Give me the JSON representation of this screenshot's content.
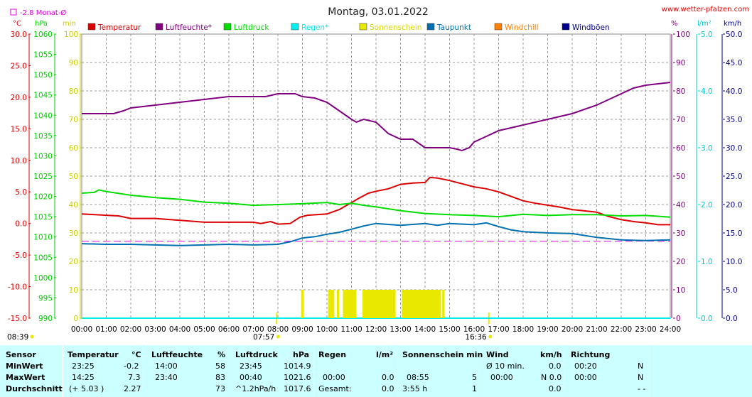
{
  "header": {
    "title": "Montag, 03.01.2022",
    "site": "www.wetter-pfalzen.com",
    "monat_label": "-2.8 Monat-Ø"
  },
  "units": {
    "temp": "°C",
    "press": "hPa",
    "sun": "min",
    "hum": "%",
    "rain": "l/m²",
    "wind": "km/h"
  },
  "legend": [
    {
      "label": "Temperatur",
      "color": "#dd0000"
    },
    {
      "label": "Luftfeuchte*",
      "color": "#800080"
    },
    {
      "label": "Luftdruck",
      "color": "#00dd00"
    },
    {
      "label": "Regen*",
      "color": "#00eeee"
    },
    {
      "label": "Sonnenschein",
      "color": "#e8e800"
    },
    {
      "label": "Taupunkt",
      "color": "#0070b0"
    },
    {
      "label": "Windchill",
      "color": "#ff8000"
    },
    {
      "label": "Windböen",
      "color": "#000090"
    }
  ],
  "axes": {
    "temp_ticks": [
      "30.0",
      "25.0",
      "20.0",
      "15.0",
      "10.0",
      "5.0",
      "0.0",
      "-5.0",
      "-10.0",
      "-15.0"
    ],
    "press_ticks": [
      "1060",
      "1055",
      "1050",
      "1045",
      "1040",
      "1035",
      "1030",
      "1025",
      "1020",
      "1015",
      "1010",
      "1005",
      "1000",
      "995",
      "990"
    ],
    "sun_ticks": [
      "100",
      "90",
      "80",
      "70",
      "60",
      "50",
      "40",
      "30",
      "20",
      "10",
      "0"
    ],
    "hum_ticks": [
      "100",
      "90",
      "80",
      "70",
      "60",
      "50",
      "40",
      "30",
      "20",
      "10",
      "0"
    ],
    "rain_ticks": [
      "5.0",
      "4.0",
      "3.0",
      "2.0",
      "1.0",
      "0.0"
    ],
    "wind_ticks": [
      "50.0",
      "45.0",
      "40.0",
      "35.0",
      "30.0",
      "25.0",
      "20.0",
      "15.0",
      "10.0",
      "5.0",
      "0.0"
    ],
    "x_ticks": [
      "00:00",
      "01:00",
      "02:00",
      "03:00",
      "04:00",
      "05:00",
      "06:00",
      "07:00",
      "08:00",
      "09:00",
      "10:00",
      "11:00",
      "12:00",
      "13:00",
      "14:00",
      "15:00",
      "16:00",
      "17:00",
      "18:00",
      "19:00",
      "20:00",
      "21:00",
      "22:00",
      "23:00",
      "24:00"
    ],
    "sunrise": "07:57",
    "sunset": "16:36",
    "moon": "08:39"
  },
  "chart_data": {
    "type": "line",
    "title": "Montag, 03.01.2022",
    "x_unit": "hour",
    "xlim": [
      0,
      24
    ],
    "temp_ylim": [
      -15,
      30
    ],
    "press_ylim": [
      990,
      1060
    ],
    "hum_ylim": [
      0,
      100
    ],
    "sun_ylim": [
      0,
      100
    ],
    "rain_ylim": [
      0,
      5
    ],
    "wind_ylim": [
      0,
      50
    ],
    "grid": true,
    "monthly_avg_temp": -2.8,
    "series": [
      {
        "name": "Temperatur",
        "axis": "temp",
        "color": "#dd0000",
        "x": [
          0,
          1,
          1.5,
          2,
          3,
          4,
          5,
          6,
          7,
          7.3,
          7.7,
          8,
          8.5,
          8.9,
          9.2,
          10,
          10.5,
          11,
          11.3,
          11.7,
          12,
          12.5,
          13,
          13.5,
          14,
          14.2,
          14.5,
          15,
          15.5,
          16,
          16.5,
          17,
          17.5,
          18,
          18.5,
          19,
          19.5,
          20,
          20.5,
          21,
          21.5,
          22,
          22.5,
          23,
          23.5,
          24
        ],
        "values": [
          1.5,
          1.3,
          1.2,
          0.8,
          0.8,
          0.5,
          0.2,
          0.2,
          0.2,
          0.0,
          0.3,
          -0.1,
          0.0,
          1.0,
          1.3,
          1.5,
          2.2,
          3.3,
          4.0,
          4.8,
          5.1,
          5.5,
          6.2,
          6.4,
          6.5,
          7.3,
          7.2,
          6.8,
          6.3,
          5.8,
          5.5,
          5.0,
          4.3,
          3.6,
          3.2,
          2.9,
          2.6,
          2.2,
          2.0,
          1.8,
          1.1,
          0.6,
          0.3,
          0.1,
          -0.2,
          -0.2
        ]
      },
      {
        "name": "Luftfeuchte*",
        "axis": "hum",
        "color": "#800080",
        "x": [
          0,
          1,
          1.3,
          1.7,
          2,
          2.5,
          3,
          4,
          5,
          6,
          7,
          7.5,
          8,
          8.3,
          8.7,
          9,
          9.5,
          10,
          10.5,
          11,
          11.2,
          11.5,
          12,
          12.5,
          13,
          13.5,
          14,
          14.5,
          15,
          15.3,
          15.5,
          15.8,
          16,
          16.5,
          17,
          17.5,
          18,
          19,
          20,
          21,
          22,
          22.5,
          23,
          23.5,
          24
        ],
        "values": [
          72,
          72,
          72,
          73,
          74,
          74.5,
          75,
          76,
          77,
          78,
          78,
          78,
          79,
          79,
          79,
          78,
          77.5,
          76,
          73,
          70,
          69,
          70,
          69,
          65,
          63,
          63,
          60,
          60,
          60,
          59.5,
          59,
          60,
          62,
          64,
          66,
          67,
          68,
          70,
          72,
          75,
          79,
          81,
          82,
          82.5,
          83
        ]
      },
      {
        "name": "Luftdruck",
        "axis": "press",
        "color": "#00dd00",
        "x": [
          0,
          0.5,
          0.7,
          1,
          2,
          3,
          4,
          5,
          6,
          7,
          8,
          9,
          10,
          10.5,
          11,
          11.5,
          12,
          13,
          14,
          15,
          16,
          17,
          18,
          19,
          20,
          21,
          22,
          23,
          24
        ],
        "values": [
          1020.8,
          1021.0,
          1021.6,
          1021.2,
          1020.3,
          1019.7,
          1019.3,
          1018.6,
          1018.3,
          1017.8,
          1018.0,
          1018.2,
          1018.5,
          1018.0,
          1018.3,
          1017.8,
          1017.4,
          1016.5,
          1015.8,
          1015.5,
          1015.3,
          1015.0,
          1015.6,
          1015.3,
          1015.5,
          1015.5,
          1015.2,
          1015.3,
          1014.9
        ]
      },
      {
        "name": "Taupunkt",
        "axis": "temp",
        "color": "#0070b0",
        "x": [
          0,
          1,
          2,
          3,
          4,
          5,
          6,
          7,
          8,
          8.5,
          9,
          9.5,
          10,
          10.5,
          11,
          11.5,
          12,
          13,
          14,
          14.5,
          15,
          16,
          16.5,
          17,
          17.5,
          18,
          19,
          20,
          21,
          22,
          23,
          24
        ],
        "values": [
          -3.2,
          -3.3,
          -3.3,
          -3.4,
          -3.5,
          -3.4,
          -3.3,
          -3.4,
          -3.3,
          -2.9,
          -2.3,
          -2.1,
          -1.7,
          -1.4,
          -0.9,
          -0.4,
          0.0,
          -0.3,
          0.0,
          -0.3,
          0.0,
          -0.2,
          0.1,
          -0.5,
          -1.0,
          -1.3,
          -1.5,
          -1.6,
          -2.2,
          -2.6,
          -2.7,
          -2.6
        ]
      },
      {
        "name": "Regen*",
        "axis": "rain",
        "color": "#00eeee",
        "x": [
          0,
          24
        ],
        "values": [
          0,
          0
        ]
      },
      {
        "name": "Sonnenschein",
        "axis": "sun",
        "color": "#e8e800",
        "bars": [
          [
            8.95,
            9.05
          ],
          [
            10.05,
            10.3
          ],
          [
            10.4,
            10.5
          ],
          [
            10.65,
            11.2
          ],
          [
            11.45,
            12.8
          ],
          [
            13.05,
            14.65
          ],
          [
            14.7,
            14.8
          ]
        ],
        "value": 10
      }
    ]
  },
  "stats": {
    "headers": {
      "sensor": "Sensor",
      "temperatur": "Temperatur",
      "temp_unit": "°C",
      "luftfeuchte": "Luftfeuchte",
      "hum_unit": "%",
      "luftdruck": "Luftdruck",
      "press_unit": "hPa",
      "regen": "Regen",
      "rain_unit": "l/m²",
      "sonnenschein": "Sonnenschein min",
      "wind": "Wind",
      "wind_unit": "km/h",
      "richtung": "Richtung"
    },
    "rows": [
      {
        "label": "MinWert",
        "t_time": "23:25",
        "t_val": "-0.2",
        "h_time": "14:00",
        "h_val": "58",
        "p_time": "23:45",
        "p_val": "1014.9",
        "r_time": "",
        "r_val": "",
        "s_time": "",
        "s_val": "",
        "w_time": "Ø 10 min.",
        "w_val": "0.0",
        "d_time": "00:20",
        "d_val": "N"
      },
      {
        "label": "MaxWert",
        "t_time": "14:25",
        "t_val": "7.3",
        "h_time": "23:40",
        "h_val": "83",
        "p_time": "00:40",
        "p_val": "1021.6",
        "r_time": "00:00",
        "r_val": "0.0",
        "s_time": "08:55",
        "s_val": "5",
        "w_time": "00:00",
        "w_val": "N 0.0",
        "d_time": "00:00",
        "d_val": "N"
      },
      {
        "label": "Durchschnitt",
        "t_time": "(+ 5.03 )",
        "t_val": "2.27",
        "h_time": "",
        "h_val": "73",
        "p_time": "^1.2hPa/h",
        "p_val": "1017.6",
        "r_time": "Gesamt:",
        "r_val": "0.0",
        "s_time": "3:55 h",
        "s_val": "1",
        "w_time": "",
        "w_val": "0.0",
        "d_time": "",
        "d_val": "- -"
      }
    ]
  }
}
